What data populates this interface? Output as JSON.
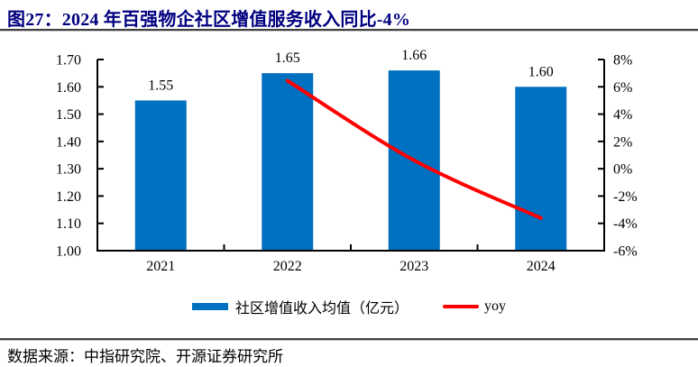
{
  "header": {
    "title": "图27：2024 年百强物企社区增值服务收入同比-4%"
  },
  "footer": {
    "source": "数据来源：中指研究院、开源证券研究所"
  },
  "legend": {
    "bar_label": "社区增值收入均值（亿元）",
    "line_label": "yoy"
  },
  "colors": {
    "bar": "#0070C0",
    "line": "#FF0000",
    "title": "#000080",
    "axis": "#000000"
  },
  "chart_data": {
    "type": "bar",
    "overlay": "line",
    "title": "图27：2024 年百强物企社区增值服务收入同比-4%",
    "categories": [
      "2021",
      "2022",
      "2023",
      "2024"
    ],
    "series": [
      {
        "name": "社区增值收入均值（亿元）",
        "type": "bar",
        "axis": "left",
        "values": [
          1.55,
          1.65,
          1.66,
          1.6
        ],
        "labels": [
          "1.55",
          "1.65",
          "1.66",
          "1.60"
        ]
      },
      {
        "name": "yoy",
        "type": "line",
        "axis": "right",
        "values": [
          null,
          6.45,
          0.61,
          -3.61
        ]
      }
    ],
    "left_axis": {
      "min": 1.0,
      "max": 1.7,
      "ticks": [
        "1.00",
        "1.10",
        "1.20",
        "1.30",
        "1.40",
        "1.50",
        "1.60",
        "1.70"
      ]
    },
    "right_axis": {
      "min": -6,
      "max": 8,
      "ticks": [
        "-6%",
        "-4%",
        "-2%",
        "0%",
        "2%",
        "4%",
        "6%",
        "8%"
      ]
    },
    "grid": false,
    "legend_position": "bottom"
  }
}
